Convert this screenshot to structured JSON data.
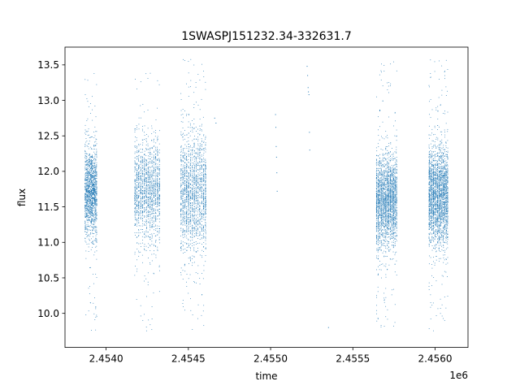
{
  "chart_data": {
    "type": "scatter",
    "title": "1SWASPJ151232.34-332631.7",
    "xlabel": "time",
    "ylabel": "flux",
    "x_offset_label": "1e6",
    "xlim": [
      2453750,
      2456200
    ],
    "ylim": [
      9.52,
      13.75
    ],
    "x_ticks": [
      2454000,
      2454500,
      2455000,
      2455500,
      2456000
    ],
    "x_tick_labels": [
      "2.4540",
      "2.4545",
      "2.4550",
      "2.4555",
      "2.4560"
    ],
    "y_ticks": [
      10.0,
      10.5,
      11.0,
      11.5,
      12.0,
      12.5,
      13.0,
      13.5
    ],
    "y_tick_labels": [
      "10.0",
      "10.5",
      "11.0",
      "11.5",
      "12.0",
      "12.5",
      "13.0",
      "13.5"
    ],
    "grid": false,
    "marker_color": "#1f77b4",
    "clusters": [
      {
        "x_start": 2453870,
        "x_end": 2453945,
        "center": 11.72,
        "spread": 0.32,
        "min": 9.7,
        "max": 13.4,
        "count": 1400
      },
      {
        "x_start": 2454170,
        "x_end": 2454330,
        "center": 11.72,
        "spread": 0.36,
        "min": 9.75,
        "max": 13.42,
        "count": 1500
      },
      {
        "x_start": 2454450,
        "x_end": 2454610,
        "center": 11.72,
        "spread": 0.42,
        "min": 9.7,
        "max": 13.58,
        "count": 1700
      },
      {
        "x_start": 2455640,
        "x_end": 2455770,
        "center": 11.6,
        "spread": 0.32,
        "min": 9.75,
        "max": 13.55,
        "count": 2400
      },
      {
        "x_start": 2455960,
        "x_end": 2456080,
        "center": 11.65,
        "spread": 0.34,
        "min": 9.72,
        "max": 13.58,
        "count": 2500
      }
    ],
    "sparse_points": [
      {
        "x": 2454660,
        "y": 12.75
      },
      {
        "x": 2454668,
        "y": 12.68
      },
      {
        "x": 2455030,
        "y": 12.8
      },
      {
        "x": 2455032,
        "y": 12.62
      },
      {
        "x": 2455034,
        "y": 12.35
      },
      {
        "x": 2455036,
        "y": 12.2
      },
      {
        "x": 2455038,
        "y": 11.98
      },
      {
        "x": 2455040,
        "y": 11.72
      },
      {
        "x": 2455222,
        "y": 13.48
      },
      {
        "x": 2455225,
        "y": 13.35
      },
      {
        "x": 2455228,
        "y": 13.18
      },
      {
        "x": 2455230,
        "y": 13.12
      },
      {
        "x": 2455233,
        "y": 13.08
      },
      {
        "x": 2455236,
        "y": 12.55
      },
      {
        "x": 2455238,
        "y": 12.3
      },
      {
        "x": 2455352,
        "y": 9.8
      }
    ]
  }
}
